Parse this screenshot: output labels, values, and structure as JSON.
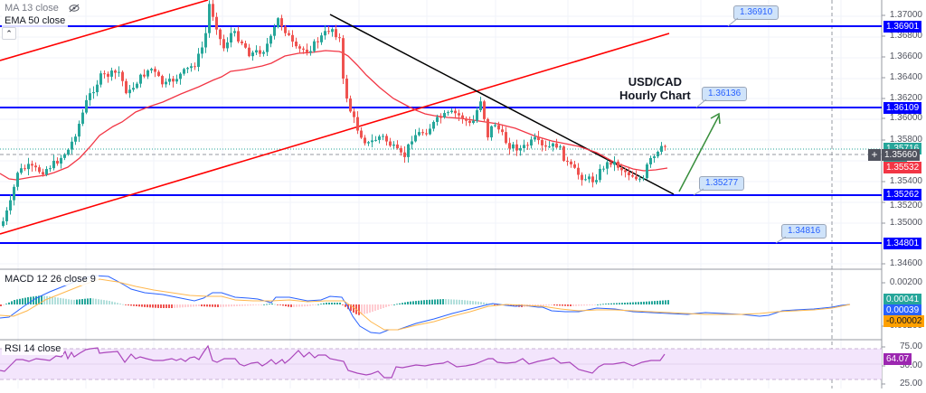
{
  "chart_data": [
    {
      "type": "line",
      "title": "USD/CAD Hourly Chart",
      "symbol": "USD/CAD",
      "timeframe": "Hourly",
      "indicators": [
        "MA 13 close",
        "EMA 50 close"
      ],
      "yticks": [
        "1.37000",
        "1.36800",
        "1.36600",
        "1.36400",
        "1.36200",
        "1.36000",
        "1.35800",
        "1.35400",
        "1.35200",
        "1.35000",
        "1.34600"
      ],
      "ylim": [
        1.3455,
        1.3718
      ],
      "horizontal_levels": [
        1.36901,
        1.36109,
        1.35262,
        1.34801
      ],
      "callouts": [
        "1.36910",
        "1.36136",
        "1.35277",
        "1.34816"
      ],
      "price_tags": {
        "last_price": "1.35716",
        "countdown": "47:38",
        "crosshair": "1.35660",
        "ema50": "1.35532",
        "levels": [
          "1.36901",
          "1.36109",
          "1.35262",
          "1.34801"
        ]
      },
      "close_approx": [
        1.3495,
        1.353,
        1.3545,
        1.3548,
        1.356,
        1.3585,
        1.361,
        1.364,
        1.365,
        1.3655,
        1.3645,
        1.365,
        1.366,
        1.3655,
        1.368,
        1.37,
        1.3675,
        1.3668,
        1.3665,
        1.3672,
        1.369,
        1.368,
        1.3678,
        1.369,
        1.3698,
        1.369,
        1.361,
        1.358,
        1.357,
        1.3575,
        1.3572,
        1.358,
        1.3585,
        1.3595,
        1.3608,
        1.36,
        1.3605,
        1.359,
        1.3582,
        1.3578,
        1.3575,
        1.3578,
        1.3568,
        1.3558,
        1.354,
        1.353,
        1.3545,
        1.355,
        1.3545,
        1.354,
        1.3535,
        1.3545,
        1.356,
        1.3572
      ],
      "ema50_approx": [
        1.355,
        1.3548,
        1.356,
        1.359,
        1.362,
        1.364,
        1.365,
        1.3655,
        1.366,
        1.3665,
        1.3672,
        1.3676,
        1.367,
        1.364,
        1.362,
        1.3605,
        1.36,
        1.3598,
        1.359,
        1.3582,
        1.3575,
        1.3565,
        1.3555,
        1.355,
        1.3553
      ],
      "annotations": [
        "Ascending channel (red)",
        "Descending trendline (black)",
        "Green arrow pointing up toward 1.36136"
      ]
    },
    {
      "type": "bar",
      "title": "MACD 12 26 close 9",
      "yticks": [
        "0.00200",
        "-0.00200"
      ],
      "values_labels": {
        "histogram": "0.00041",
        "macd": "0.00039",
        "signal": "-0.00002"
      }
    },
    {
      "type": "line",
      "title": "RSI 14 close",
      "yticks": [
        "75.00",
        "50.00",
        "25.00"
      ],
      "band": [
        30,
        70
      ],
      "last_value": "64.07"
    }
  ],
  "legend": {
    "ma13": "MA 13 close",
    "ema50": "EMA 50 close",
    "macd": "MACD 12 26 close 9",
    "rsi": "RSI 14 close"
  },
  "title": {
    "line1": "USD/CAD",
    "line2": "Hourly Chart"
  },
  "callouts": {
    "c1": "1.36910",
    "c2": "1.36136",
    "c3": "1.35277",
    "c4": "1.34816"
  },
  "axis": {
    "t1": "1.37000",
    "t2": "1.36800",
    "t3": "1.36600",
    "t4": "1.36400",
    "t5": "1.36200",
    "t6": "1.36000",
    "t7": "1.35800",
    "t8": "1.35400",
    "t9": "1.35200",
    "t10": "1.35000",
    "t11": "1.34600",
    "macd1": "0.00200",
    "macd2": "-0.00200",
    "rsi1": "75.00",
    "rsi2": "50.00",
    "rsi3": "25.00"
  },
  "tags": {
    "level1": "1.36901",
    "level2": "1.36109",
    "last": "1.35716",
    "countdown": "47:38",
    "crosshair": "1.35660",
    "ema": "1.35532",
    "level3": "1.35262",
    "level4": "1.34801",
    "macd_hist": "0.00041",
    "macd_line": "0.00039",
    "macd_signal": "-0.00002",
    "rsi": "64.07"
  },
  "colors": {
    "level_line": "#0000ff",
    "channel": "#ff0000",
    "trendline": "#000000",
    "ema": "#f23645",
    "up_candle": "#26a69a",
    "down_candle": "#ef5350",
    "arrow": "#388e3c",
    "macd_line": "#2962ff",
    "signal_line": "#ffb74d",
    "rsi_line": "#ab47bc",
    "rsi_band": "#f3e5fc"
  }
}
